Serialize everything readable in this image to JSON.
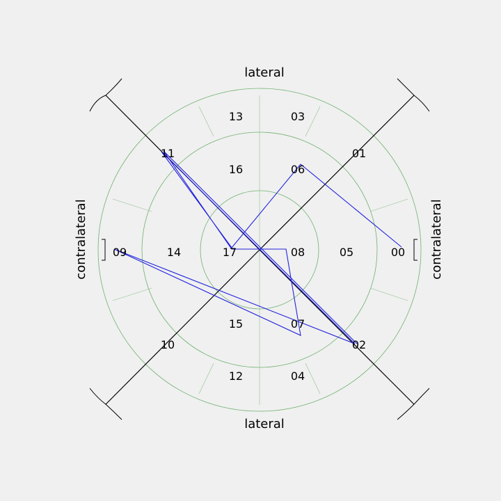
{
  "labels": {
    "top": "lateral",
    "bottom": "lateral",
    "left": "contralateral",
    "right": "contralateral"
  },
  "positions": [
    {
      "id": "00",
      "label": "00"
    },
    {
      "id": "01",
      "label": "01"
    },
    {
      "id": "02",
      "label": "02"
    },
    {
      "id": "03",
      "label": "03"
    },
    {
      "id": "04",
      "label": "04"
    },
    {
      "id": "05",
      "label": "05"
    },
    {
      "id": "06",
      "label": "06"
    },
    {
      "id": "07",
      "label": "07"
    },
    {
      "id": "08",
      "label": "08"
    },
    {
      "id": "09",
      "label": "09"
    },
    {
      "id": "10",
      "label": "10"
    },
    {
      "id": "11",
      "label": "11"
    },
    {
      "id": "12",
      "label": "12"
    },
    {
      "id": "13",
      "label": "13"
    },
    {
      "id": "14",
      "label": "14"
    },
    {
      "id": "15",
      "label": "15"
    },
    {
      "id": "16",
      "label": "16"
    },
    {
      "id": "17",
      "label": "17"
    }
  ],
  "path": [
    "00",
    "06",
    "17",
    "11",
    "02",
    "09",
    "07",
    "08",
    "17",
    "11",
    "02"
  ],
  "colors": {
    "rings": "#6fb06f",
    "path": "#2222dd",
    "axes": "#000000",
    "background": "#f0f0f0"
  }
}
